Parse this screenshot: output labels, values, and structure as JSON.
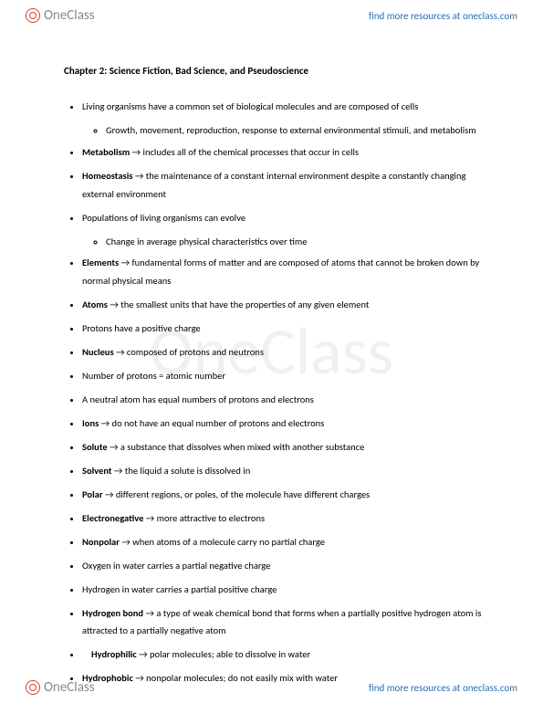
{
  "brand": {
    "name": "OneClass",
    "link_text": "find more resources at oneclass.com"
  },
  "watermark": "OneClass",
  "doc": {
    "title": "Chapter 2: Science Fiction, Bad Science, and Pseudoscience",
    "arrow": "→",
    "items": [
      {
        "text": "Living organisms have a common set of biological molecules and are composed of cells",
        "sub": [
          "Growth, movement, reproduction, response to external environmental stimuli, and metabolism"
        ]
      },
      {
        "term": "Metabolism",
        "def": "includes all of the chemical processes that occur in cells"
      },
      {
        "term": "Homeostasis",
        "def": "the maintenance of a constant internal environment despite a constantly changing external environment"
      },
      {
        "text": "Populations of living organisms can evolve",
        "sub": [
          "Change in average physical characteristics over time"
        ]
      },
      {
        "term": "Elements",
        "def": "fundamental forms of matter and are composed of atoms that cannot be broken down by normal physical means"
      },
      {
        "term": "Atoms",
        "def": "the smallest units that have the properties of any given element"
      },
      {
        "text": "Protons have a positive charge"
      },
      {
        "term": "Nucleus",
        "def": "composed of protons and neutrons"
      },
      {
        "text": "Number of protons = atomic number"
      },
      {
        "text": "A neutral atom has equal numbers of protons and electrons"
      },
      {
        "term": "Ions",
        "def": "do not have an equal number of protons and electrons"
      },
      {
        "term": "Solute",
        "def": "a substance that dissolves when mixed with another substance"
      },
      {
        "term": "Solvent",
        "def": "the liquid a solute is dissolved in"
      },
      {
        "term": "Polar",
        "def": "different regions, or poles, of the molecule have different charges"
      },
      {
        "term": "Electronegative",
        "def": "more attractive to electrons"
      },
      {
        "term": "Nonpolar",
        "def": "when atoms of a molecule carry no partial charge"
      },
      {
        "text": "Oxygen in water carries a partial negative charge"
      },
      {
        "text": "Hydrogen in water carries a partial positive charge"
      },
      {
        "term": "Hydrogen bond",
        "def": "a type of weak chemical bond that forms when a partially positive hydrogen atom is attracted to a partially negative atom"
      },
      {
        "term": "Hydrophilic",
        "def": "polar molecules; able to dissolve in water",
        "indent": true
      },
      {
        "term": "Hydrophobic",
        "def": "nonpolar molecules; do not easily mix with water"
      }
    ]
  }
}
